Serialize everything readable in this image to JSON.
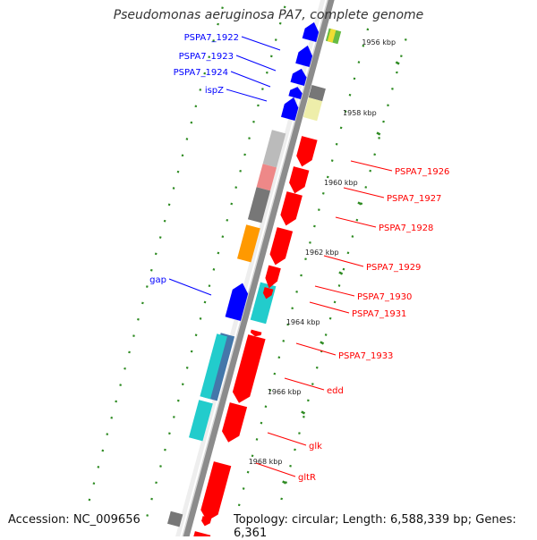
{
  "title": "Pseudomonas aeruginosa PA7, complete genome",
  "footer": {
    "accession": "Accession: NC_009656",
    "topology": "Topology: circular; Length: 6,588,339 bp; Genes: 6,361"
  },
  "scale_labels": [
    "1956 kbp",
    "1958 kbp",
    "1960 kbp",
    "1962 kbp",
    "1964 kbp",
    "1966 kbp",
    "1968 kbp"
  ],
  "forward_genes": [
    {
      "label": "PSPA7_1922",
      "color": "#0000ff"
    },
    {
      "label": "PSPA7_1923",
      "color": "#0000ff"
    },
    {
      "label": "PSPA7_1924",
      "color": "#0000ff"
    },
    {
      "label": "ispZ",
      "color": "#0000ff"
    },
    {
      "label": "gap",
      "color": "#0000ff"
    }
  ],
  "reverse_genes": [
    {
      "label": "PSPA7_1926",
      "color": "#ff0000"
    },
    {
      "label": "PSPA7_1927",
      "color": "#ff0000"
    },
    {
      "label": "PSPA7_1928",
      "color": "#ff0000"
    },
    {
      "label": "PSPA7_1929",
      "color": "#ff0000"
    },
    {
      "label": "PSPA7_1930",
      "color": "#ff0000"
    },
    {
      "label": "PSPA7_1931",
      "color": "#ff0000"
    },
    {
      "label": "PSPA7_1933",
      "color": "#ff0000"
    },
    {
      "label": "edd",
      "color": "#ff0000"
    },
    {
      "label": "glk",
      "color": "#ff0000"
    },
    {
      "label": "gltR",
      "color": "#ff0000"
    }
  ],
  "colors": {
    "backbone": "#8c8c8c",
    "tick": "#2e8b22",
    "forward": "#0000ff",
    "reverse": "#ff0000",
    "cog_cyan": "#22cccc",
    "cog_gray": "#777777",
    "cog_orange": "#ff9900",
    "cog_pink": "#ee8888",
    "cog_khaki": "#eeeeaa",
    "cog_steel": "#4477aa"
  }
}
